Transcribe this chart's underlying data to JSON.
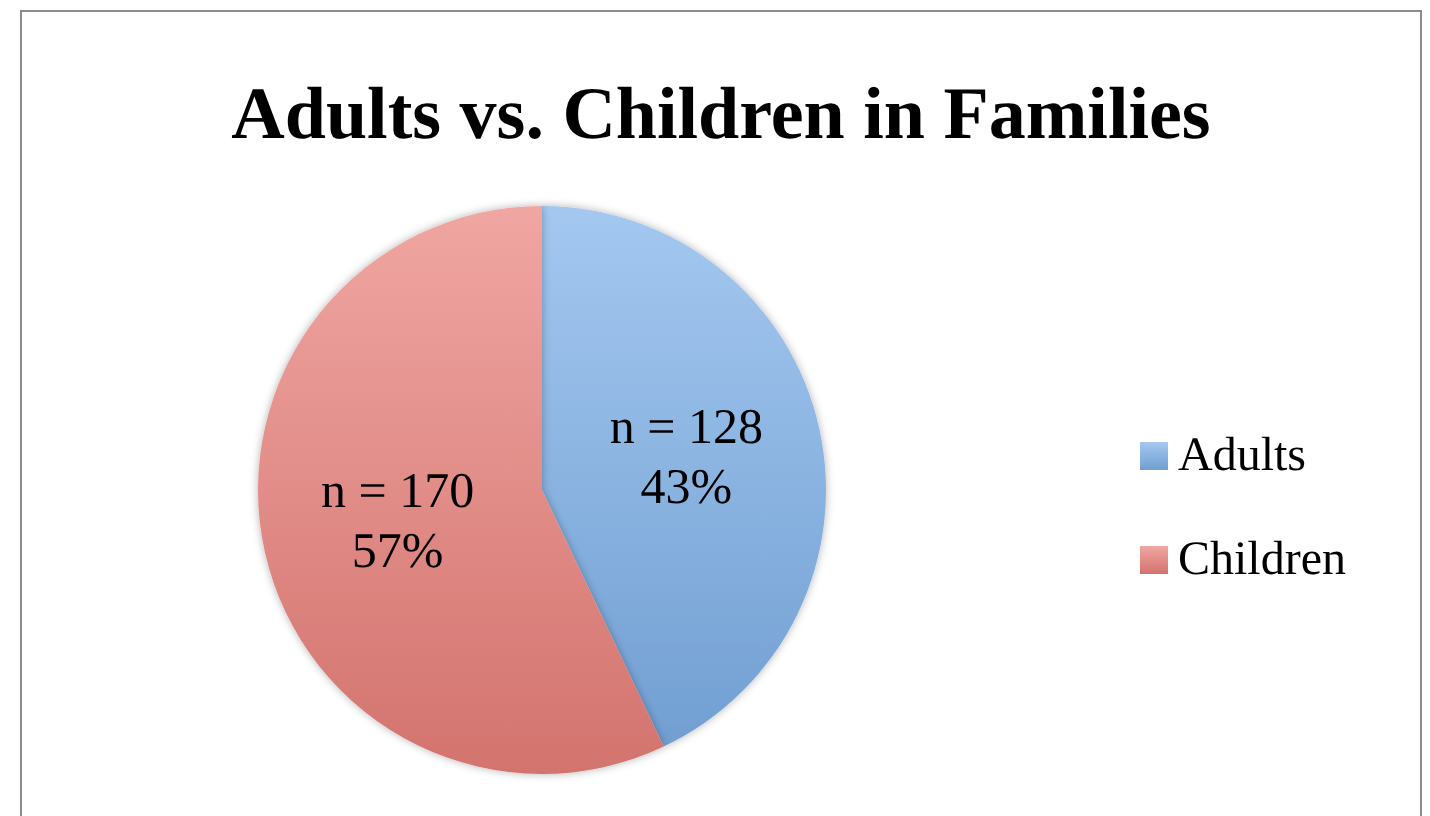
{
  "chart_data": {
    "type": "pie",
    "title": "Adults vs. Children in Families",
    "categories": [
      "Adults",
      "Children"
    ],
    "values": [
      128,
      170
    ],
    "colors": [
      "#7db1e9",
      "#ea807a"
    ],
    "value_labels": [
      "n = 128\n43%",
      "n = 170\n57%"
    ],
    "legend": "right"
  }
}
